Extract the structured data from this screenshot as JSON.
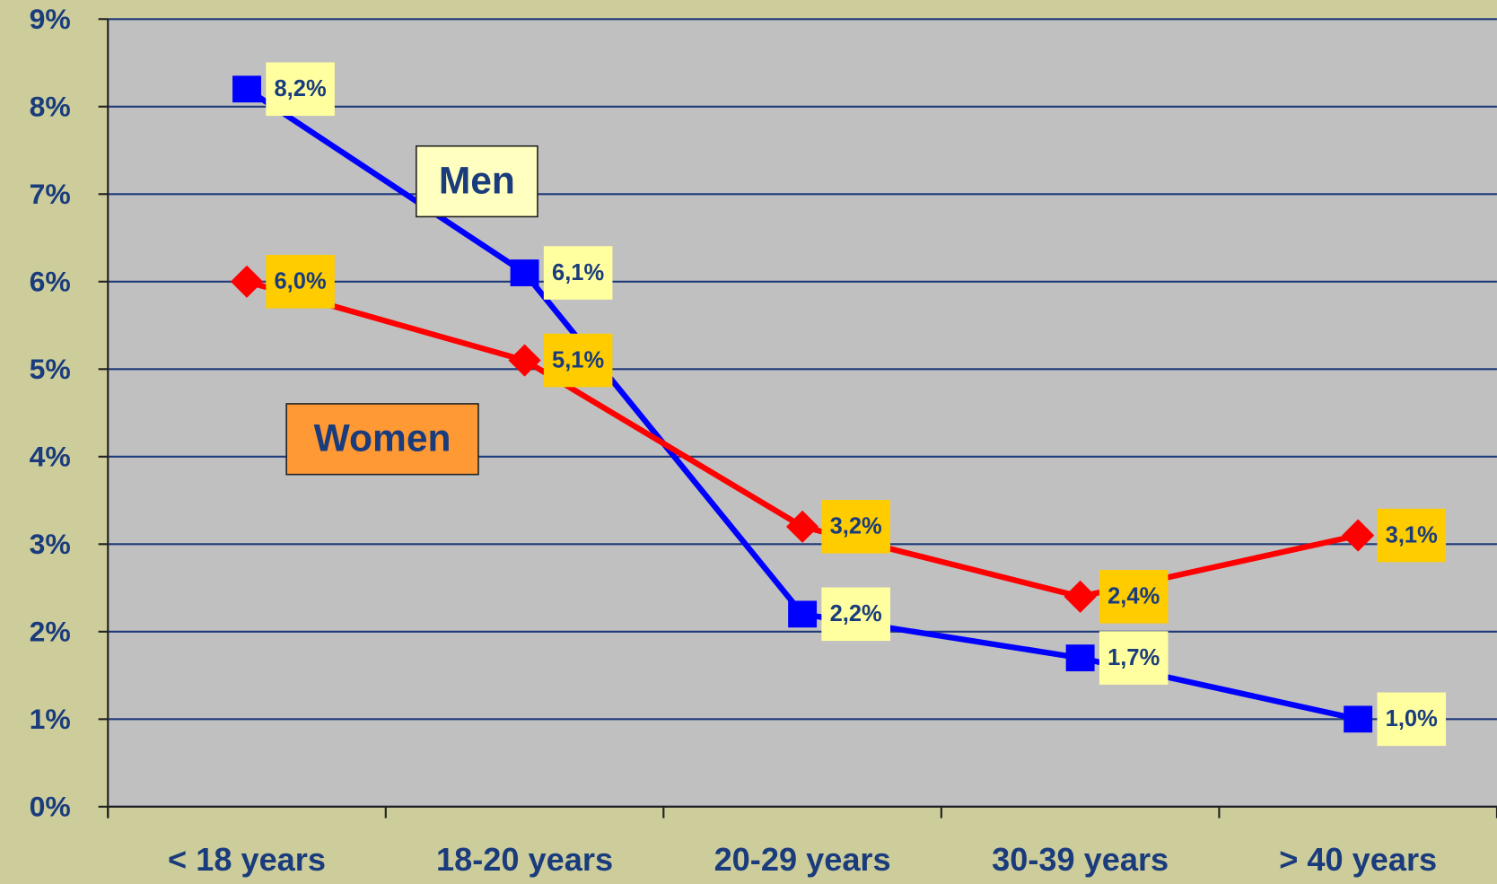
{
  "chart_data": {
    "type": "line",
    "categories": [
      "< 18 years",
      "18-20 years",
      "20-29 years",
      "30-39 years",
      "> 40 years"
    ],
    "series": [
      {
        "name": "Men",
        "color": "#0000ff",
        "legend_color": "#ffffc0",
        "label_color": "#ffffa0",
        "values": [
          8.2,
          6.1,
          2.2,
          1.7,
          1.0
        ],
        "value_labels": [
          "8,2%",
          "6,1%",
          "2,2%",
          "1,7%",
          "1,0%"
        ]
      },
      {
        "name": "Women",
        "color": "#ff0000",
        "legend_color": "#ff9933",
        "label_color": "#ffcc00",
        "values": [
          6.0,
          5.1,
          3.2,
          2.4,
          3.1
        ],
        "value_labels": [
          "6,0%",
          "5,1%",
          "3,2%",
          "2,4%",
          "3,1%"
        ]
      }
    ],
    "ylim": [
      0,
      9
    ],
    "yticks": [
      {
        "value": 0,
        "label": "0%"
      },
      {
        "value": 1,
        "label": "1%"
      },
      {
        "value": 2,
        "label": "2%"
      },
      {
        "value": 3,
        "label": "3%"
      },
      {
        "value": 4,
        "label": "4%"
      },
      {
        "value": 5,
        "label": "5%"
      },
      {
        "value": 6,
        "label": "6%"
      },
      {
        "value": 7,
        "label": "7%"
      },
      {
        "value": 8,
        "label": "8%"
      },
      {
        "value": 9,
        "label": "9%"
      }
    ],
    "grid": true
  }
}
